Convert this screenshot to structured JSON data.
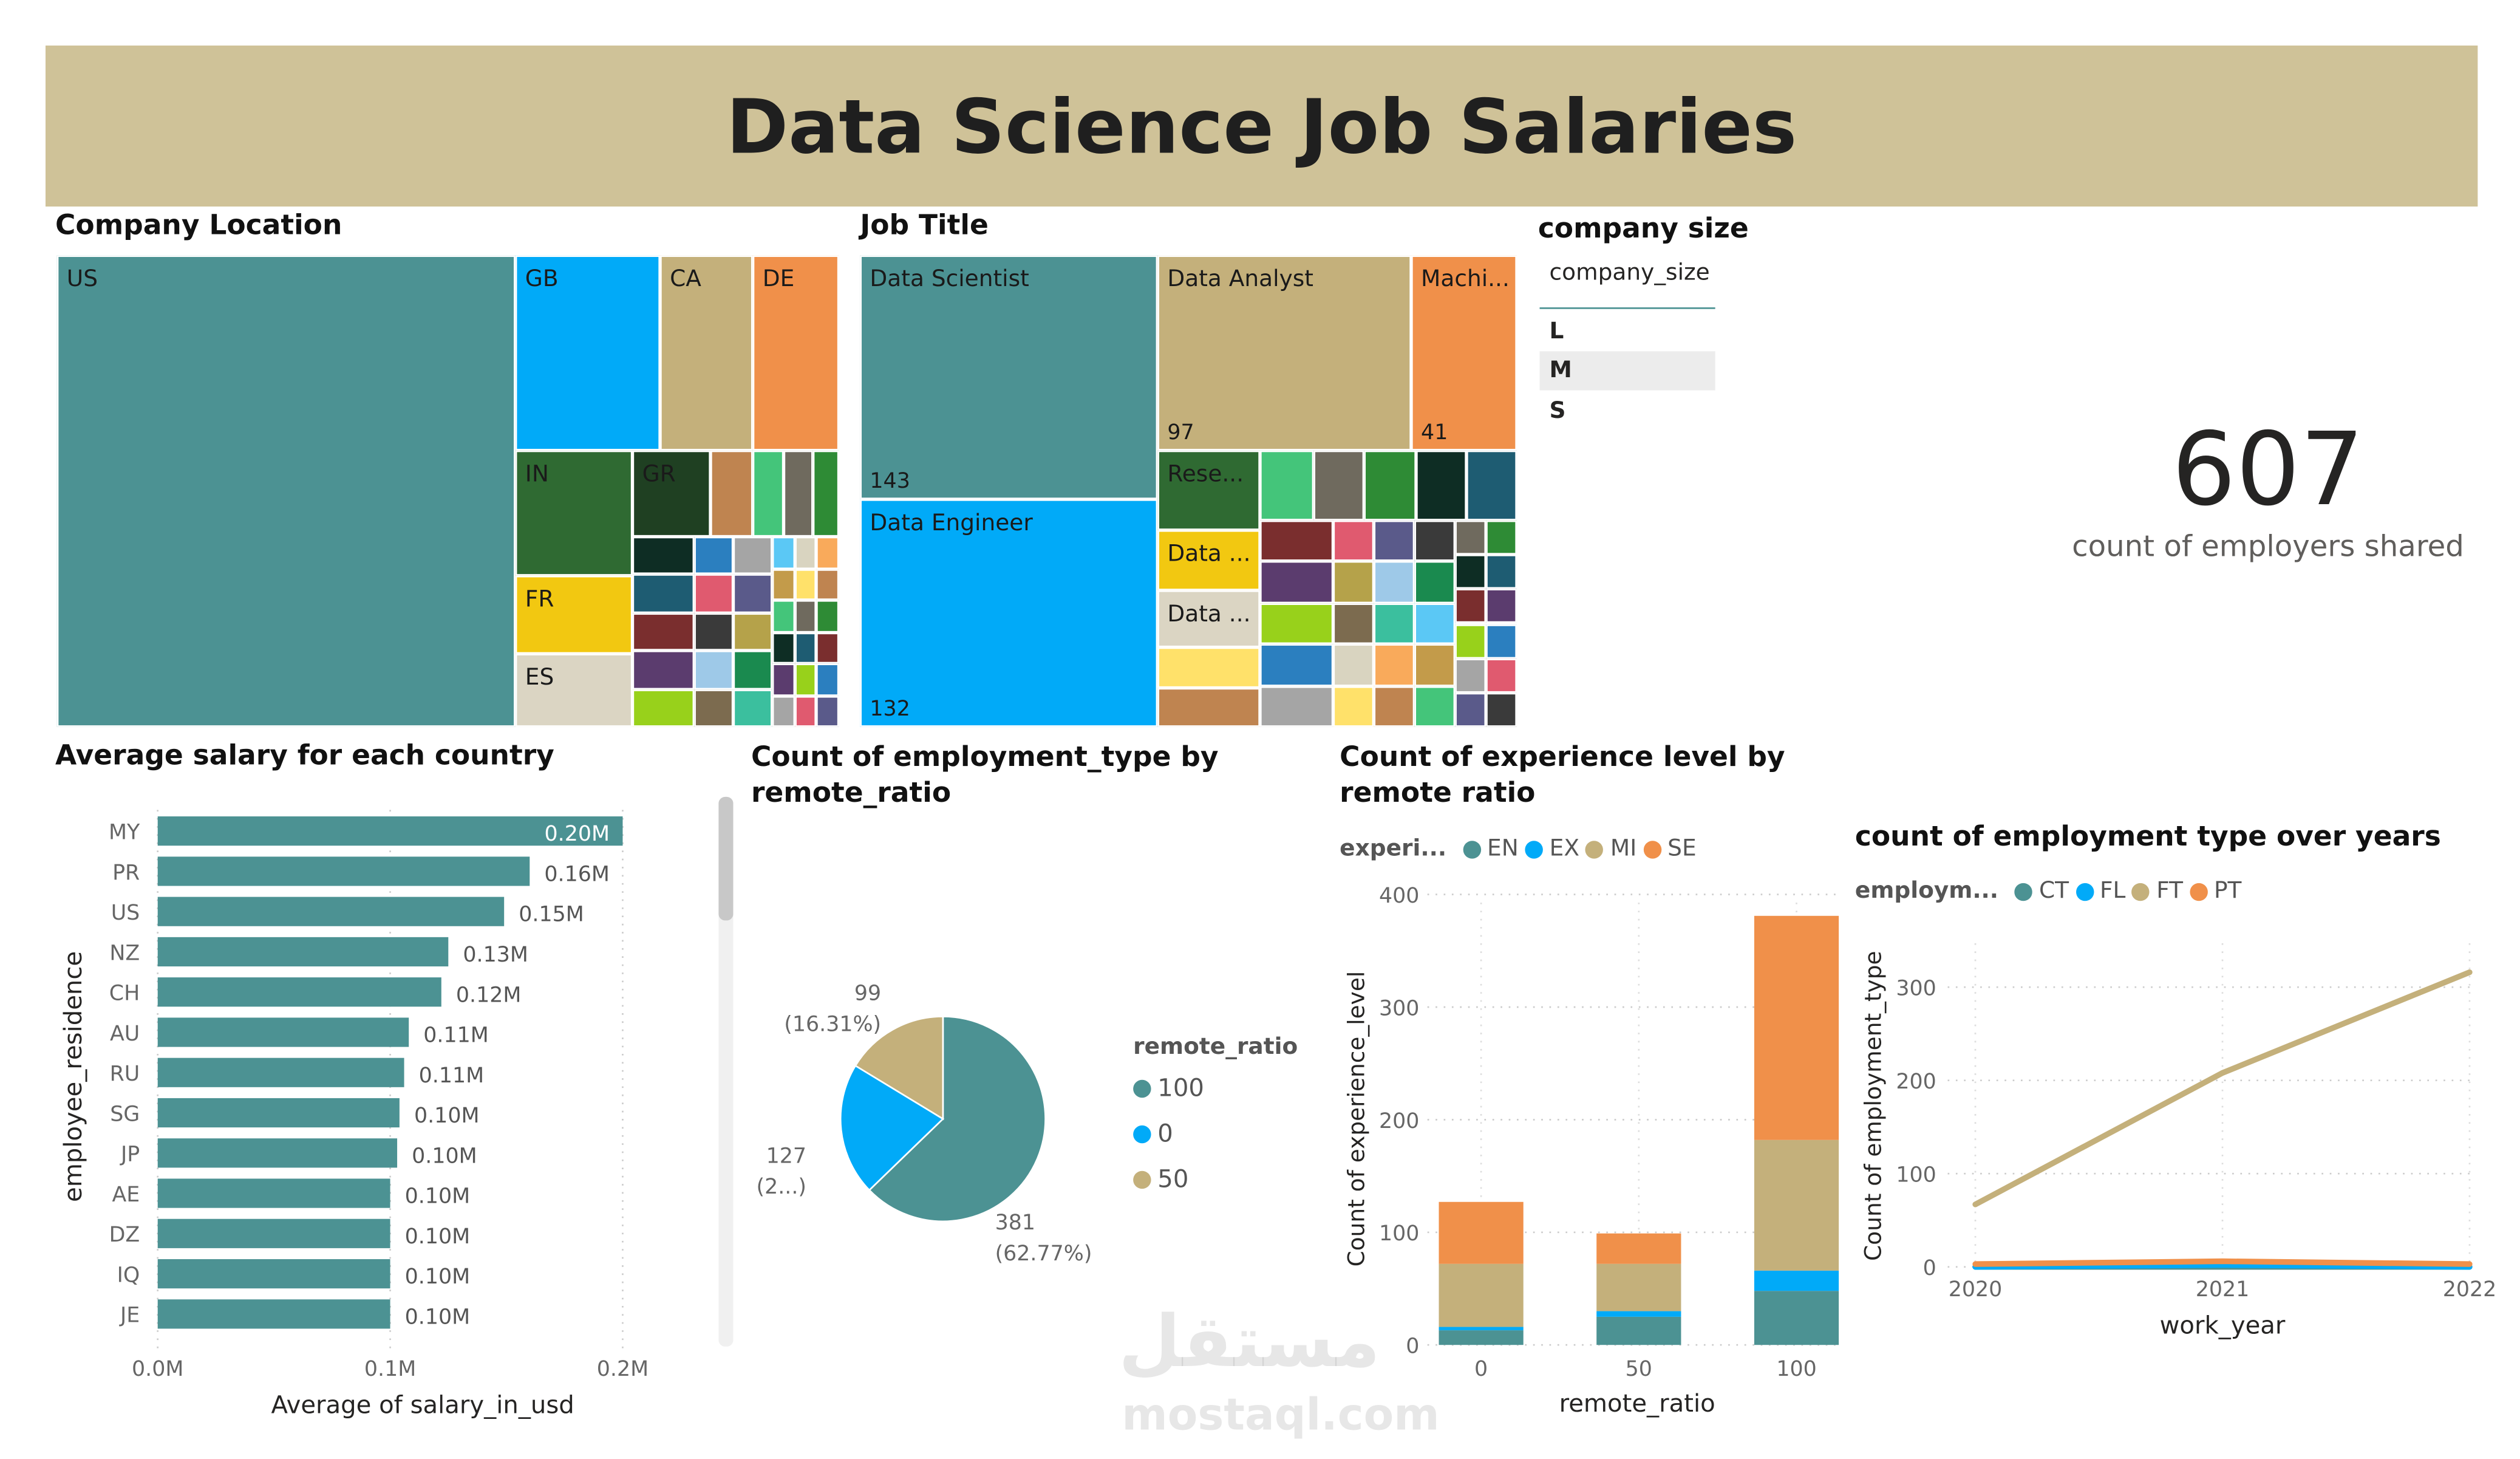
{
  "title": "Data Science Job Salaries",
  "colors": {
    "teal": "#4c9293",
    "blue": "#01aaf8",
    "tan": "#c4b07b",
    "orange": "#f0904a",
    "banner": "#cfc298"
  },
  "company_location": {
    "title": "Company Location",
    "tiles": [
      {
        "label": "US",
        "color": "#4c9293"
      },
      {
        "label": "GB",
        "color": "#01aaf8"
      },
      {
        "label": "CA",
        "color": "#c4b07b"
      },
      {
        "label": "DE",
        "color": "#f0904a"
      },
      {
        "label": "IN",
        "color": "#2f6a32"
      },
      {
        "label": "GR",
        "color": "#1f4022"
      },
      {
        "label": "FR",
        "color": "#f2c811"
      },
      {
        "label": "ES",
        "color": "#dbd5c3"
      }
    ]
  },
  "job_title": {
    "title": "Job Title",
    "tiles": [
      {
        "label": "Data Scientist",
        "value": "143",
        "color": "#4c9293"
      },
      {
        "label": "Data Engineer",
        "value": "132",
        "color": "#01aaf8"
      },
      {
        "label": "Data Analyst",
        "value": "97",
        "color": "#c4b07b"
      },
      {
        "label": "Machi...",
        "value": "41",
        "color": "#f0904a"
      },
      {
        "label": "Rese...",
        "color": "#2f6a32"
      },
      {
        "label": "Data ...",
        "color": "#f2c811"
      },
      {
        "label": "Data ...",
        "color": "#dbd5c3"
      }
    ]
  },
  "company_size": {
    "title": "company size",
    "field": "company_size",
    "items": [
      "L",
      "M",
      "S"
    ],
    "selected": "M"
  },
  "kpi": {
    "value": "607",
    "label": "count of employers shared"
  },
  "chart_data": [
    {
      "type": "bar",
      "title": "Average salary for each country",
      "orientation": "horizontal",
      "xlabel": "Average of salary_in_usd",
      "ylabel": "employee_residence",
      "xlim": [
        0,
        200000
      ],
      "xticks": [
        "0.0M",
        "0.1M",
        "0.2M"
      ],
      "categories": [
        "MY",
        "PR",
        "US",
        "NZ",
        "CH",
        "AU",
        "RU",
        "SG",
        "JP",
        "AE",
        "DZ",
        "IQ",
        "JE"
      ],
      "values": [
        200000,
        160000,
        149000,
        125000,
        122000,
        108000,
        106000,
        104000,
        103000,
        100000,
        100000,
        100000,
        100000
      ],
      "data_labels": [
        "0.20M",
        "0.16M",
        "0.15M",
        "0.13M",
        "0.12M",
        "0.11M",
        "0.11M",
        "0.10M",
        "0.10M",
        "0.10M",
        "0.10M",
        "0.10M",
        "0.10M"
      ],
      "color": "#4c9293"
    },
    {
      "type": "pie",
      "title": "Count of employment_type by remote_ratio",
      "legend_title": "remote_ratio",
      "legend": "right",
      "slices": [
        {
          "name": "100",
          "value": 381,
          "label": "381",
          "pct": "(62.77%)",
          "color": "#4c9293"
        },
        {
          "name": "0",
          "value": 127,
          "label": "127",
          "pct": "(2...)",
          "color": "#01aaf8"
        },
        {
          "name": "50",
          "value": 99,
          "label": "99",
          "pct": "(16.31%)",
          "color": "#c4b07b"
        }
      ]
    },
    {
      "type": "bar",
      "stacked": true,
      "title": "Count of experience level by remote ratio",
      "legend_title": "experi...",
      "legend": "top-left",
      "xlabel": "remote_ratio",
      "ylabel": "Count of experience_level",
      "ylim": [
        0,
        400
      ],
      "yticks": [
        0,
        100,
        200,
        300,
        400
      ],
      "categories": [
        "0",
        "50",
        "100"
      ],
      "series": [
        {
          "name": "EN",
          "values": [
            13,
            25,
            48
          ],
          "color": "#4c9293"
        },
        {
          "name": "EX",
          "values": [
            3,
            5,
            18
          ],
          "color": "#01aaf8"
        },
        {
          "name": "MI",
          "values": [
            56,
            42,
            116
          ],
          "color": "#c4b07b"
        },
        {
          "name": "SE",
          "values": [
            55,
            27,
            199
          ],
          "color": "#f0904a"
        }
      ]
    },
    {
      "type": "line",
      "title": "count of employment type over years",
      "legend_title": "employm...",
      "legend": "top-left",
      "xlabel": "work_year",
      "ylabel": "Count of employment_type",
      "ylim": [
        0,
        340
      ],
      "yticks": [
        0,
        100,
        200,
        300
      ],
      "x": [
        "2020",
        "2021",
        "2022"
      ],
      "series": [
        {
          "name": "CT",
          "values": [
            0,
            0,
            0
          ],
          "color": "#4c9293"
        },
        {
          "name": "FL",
          "values": [
            0,
            2,
            0
          ],
          "color": "#01aaf8"
        },
        {
          "name": "FT",
          "values": [
            67,
            208,
            316
          ],
          "color": "#c4b07b"
        },
        {
          "name": "PT",
          "values": [
            3,
            6,
            3
          ],
          "color": "#f0904a"
        }
      ]
    }
  ],
  "watermark": {
    "text": "mostaql.com",
    "logo": "مستقل"
  }
}
